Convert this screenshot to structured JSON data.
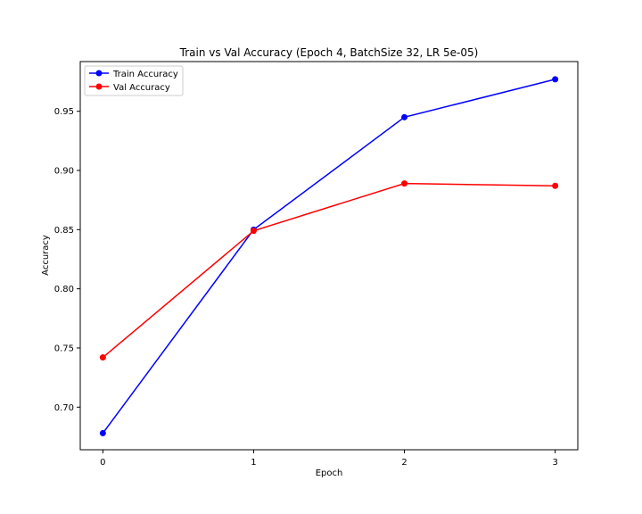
{
  "chart_data": {
    "type": "line",
    "title": "Train vs Val Accuracy (Epoch 4, BatchSize 32, LR 5e-05)",
    "xlabel": "Epoch",
    "ylabel": "Accuracy",
    "x": [
      0,
      1,
      2,
      3
    ],
    "x_ticks": [
      "0",
      "1",
      "2",
      "3"
    ],
    "y_ticks": [
      "0.70",
      "0.75",
      "0.80",
      "0.85",
      "0.90",
      "0.95"
    ],
    "y_tick_values": [
      0.7,
      0.75,
      0.8,
      0.85,
      0.9,
      0.95
    ],
    "xlim": [
      -0.15,
      3.15
    ],
    "ylim": [
      0.664,
      0.992
    ],
    "grid": false,
    "legend_position": "top-left",
    "series": [
      {
        "name": "Train Accuracy",
        "color": "#0000ff",
        "marker": "circle",
        "values": [
          0.678,
          0.85,
          0.945,
          0.977
        ]
      },
      {
        "name": "Val Accuracy",
        "color": "#ff0000",
        "marker": "circle",
        "values": [
          0.742,
          0.849,
          0.889,
          0.887
        ]
      }
    ]
  }
}
